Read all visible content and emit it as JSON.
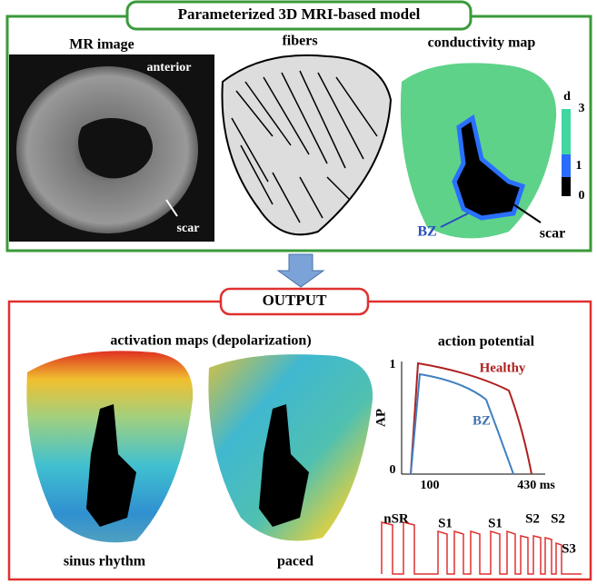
{
  "header": {
    "title": "Parameterized 3D MRI-based model"
  },
  "panels": {
    "mr_image": {
      "label": "MR image",
      "annotations": [
        "anterior",
        "scar"
      ]
    },
    "fibers": {
      "label": "fibers"
    },
    "conductivity_map": {
      "label": "conductivity map",
      "colorbar_title": "d",
      "colorbar_ticks": [
        "3",
        "1",
        "0"
      ],
      "annotations": [
        "BZ",
        "scar"
      ]
    }
  },
  "output": {
    "title": "OUTPUT",
    "activation_maps": {
      "label": "activation maps (depolarization)",
      "captions": [
        "sinus rhythm",
        "paced"
      ]
    },
    "action_potential": {
      "label": "action potential",
      "y_axis": "AP",
      "y_ticks": [
        "1",
        "0"
      ],
      "x_ticks": [
        "100",
        "430 ms"
      ],
      "curves": [
        "Healthy",
        "BZ"
      ]
    },
    "pacing": [
      "nSR",
      "S1",
      "S1",
      "S2",
      "S2",
      "S3"
    ]
  }
}
